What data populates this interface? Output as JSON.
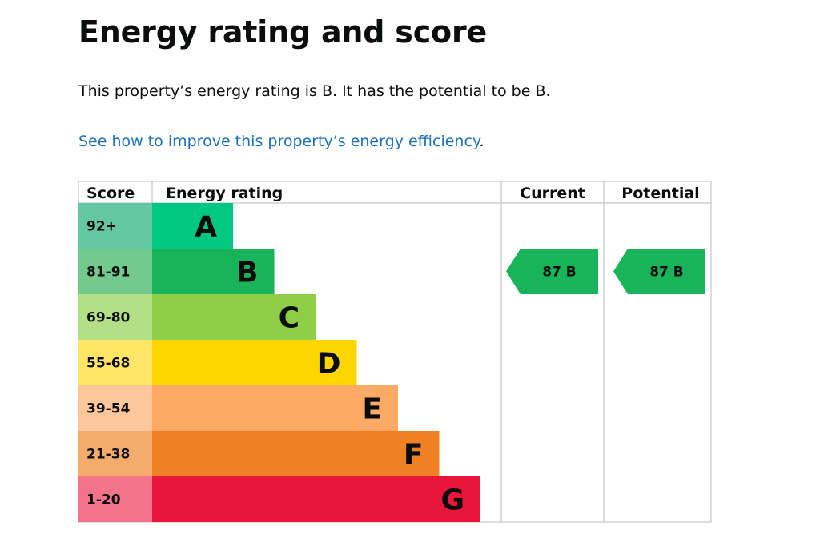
{
  "page": {
    "title": "Energy rating and score",
    "intro": "This property’s energy rating is B. It has the potential to be B.",
    "link_text": "See how to improve this property’s energy efficiency",
    "link_suffix": "."
  },
  "chart_data": {
    "type": "table",
    "headers": {
      "score": "Score",
      "rating": "Energy rating",
      "current": "Current",
      "potential": "Potential"
    },
    "bands": [
      {
        "letter": "A",
        "score": "92+",
        "color": "#00c781",
        "score_bg": "#64c7a4"
      },
      {
        "letter": "B",
        "score": "81-91",
        "color": "#19b459",
        "score_bg": "#72ca8e"
      },
      {
        "letter": "C",
        "score": "69-80",
        "color": "#8dce46",
        "score_bg": "#b3df86"
      },
      {
        "letter": "D",
        "score": "55-68",
        "color": "#ffd500",
        "score_bg": "#ffe666"
      },
      {
        "letter": "E",
        "score": "39-54",
        "color": "#fcaa65",
        "score_bg": "#fdc79b"
      },
      {
        "letter": "F",
        "score": "21-38",
        "color": "#ef8023",
        "score_bg": "#f4ac6c"
      },
      {
        "letter": "G",
        "score": "1-20",
        "color": "#e9153b",
        "score_bg": "#f2738a"
      }
    ],
    "current": {
      "value": 87,
      "band": "B",
      "label": "87 B",
      "color": "#19b459"
    },
    "potential": {
      "value": 87,
      "band": "B",
      "label": "87 B",
      "color": "#19b459"
    }
  }
}
